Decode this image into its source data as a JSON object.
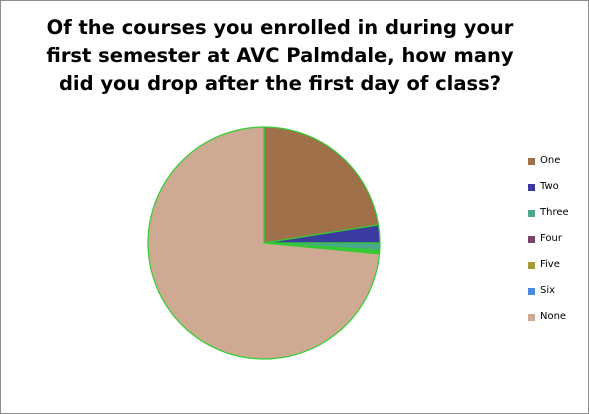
{
  "chart_data": {
    "type": "pie",
    "title": "Of the courses you enrolled in during your first semester at AVC Palmdale, how many did you drop after the first day of class?",
    "categories": [
      "One",
      "Two",
      "Three",
      "Four",
      "Five",
      "Six",
      "None"
    ],
    "values": [
      22.5,
      2.5,
      1.0,
      0.2,
      0.2,
      0.1,
      73.5
    ],
    "colors": [
      "#A0704A",
      "#3A3AA0",
      "#49A88E",
      "#7B4466",
      "#A89A3C",
      "#4A8AE0",
      "#CFAA93"
    ],
    "slice_border_color": "#33CC33",
    "legend_position": "right",
    "start_angle": "top, clockwise"
  }
}
